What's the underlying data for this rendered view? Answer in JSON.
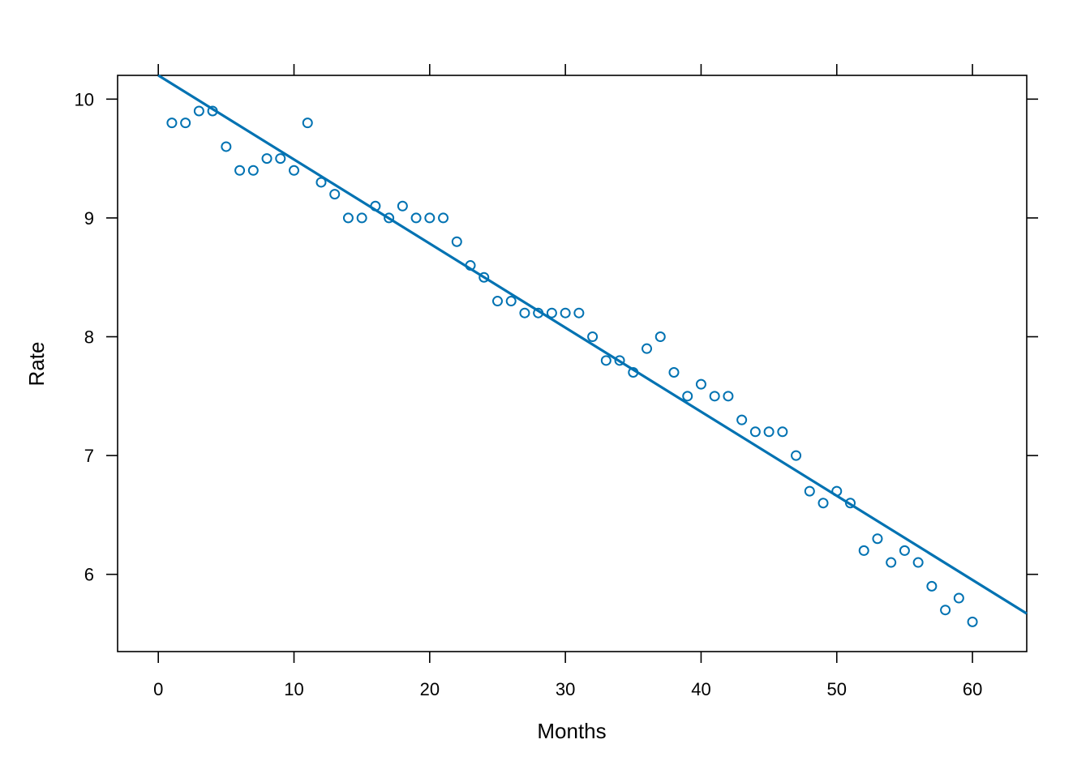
{
  "chart_data": {
    "type": "scatter",
    "title": "",
    "xlabel": "Months",
    "ylabel": "Rate",
    "xlim": [
      -3,
      64
    ],
    "ylim": [
      5.35,
      10.2
    ],
    "x_ticks": [
      0,
      10,
      20,
      30,
      40,
      50,
      60
    ],
    "y_ticks": [
      6,
      7,
      8,
      9,
      10
    ],
    "grid": false,
    "legend": "none",
    "point_color": "#0072B2",
    "line_color": "#0072B2",
    "points": {
      "x": [
        1,
        2,
        3,
        4,
        5,
        6,
        7,
        8,
        9,
        10,
        11,
        12,
        13,
        14,
        15,
        16,
        17,
        18,
        19,
        20,
        21,
        22,
        23,
        24,
        25,
        26,
        27,
        28,
        29,
        30,
        31,
        32,
        33,
        34,
        35,
        36,
        37,
        38,
        39,
        40,
        41,
        42,
        43,
        44,
        45,
        46,
        47,
        48,
        49,
        50,
        51,
        52,
        53,
        54,
        55,
        56,
        57,
        58,
        59,
        60
      ],
      "y": [
        9.8,
        9.8,
        9.9,
        9.9,
        9.6,
        9.4,
        9.4,
        9.5,
        9.5,
        9.4,
        9.8,
        9.3,
        9.2,
        9.0,
        9.0,
        9.1,
        9.0,
        9.1,
        9.0,
        9.0,
        9.0,
        8.8,
        8.6,
        8.5,
        8.3,
        8.3,
        8.2,
        8.2,
        8.2,
        8.2,
        8.2,
        8.0,
        7.8,
        7.8,
        7.7,
        7.9,
        8.0,
        7.7,
        7.5,
        7.6,
        7.5,
        7.5,
        7.3,
        7.2,
        7.2,
        7.2,
        7.0,
        6.7,
        6.6,
        6.7,
        6.6,
        6.2,
        6.3,
        6.1,
        6.2,
        6.1,
        5.9,
        5.7,
        5.8,
        5.6
      ]
    },
    "fit_line": {
      "x": [
        0,
        64
      ],
      "y": [
        10.2,
        5.67
      ]
    }
  }
}
